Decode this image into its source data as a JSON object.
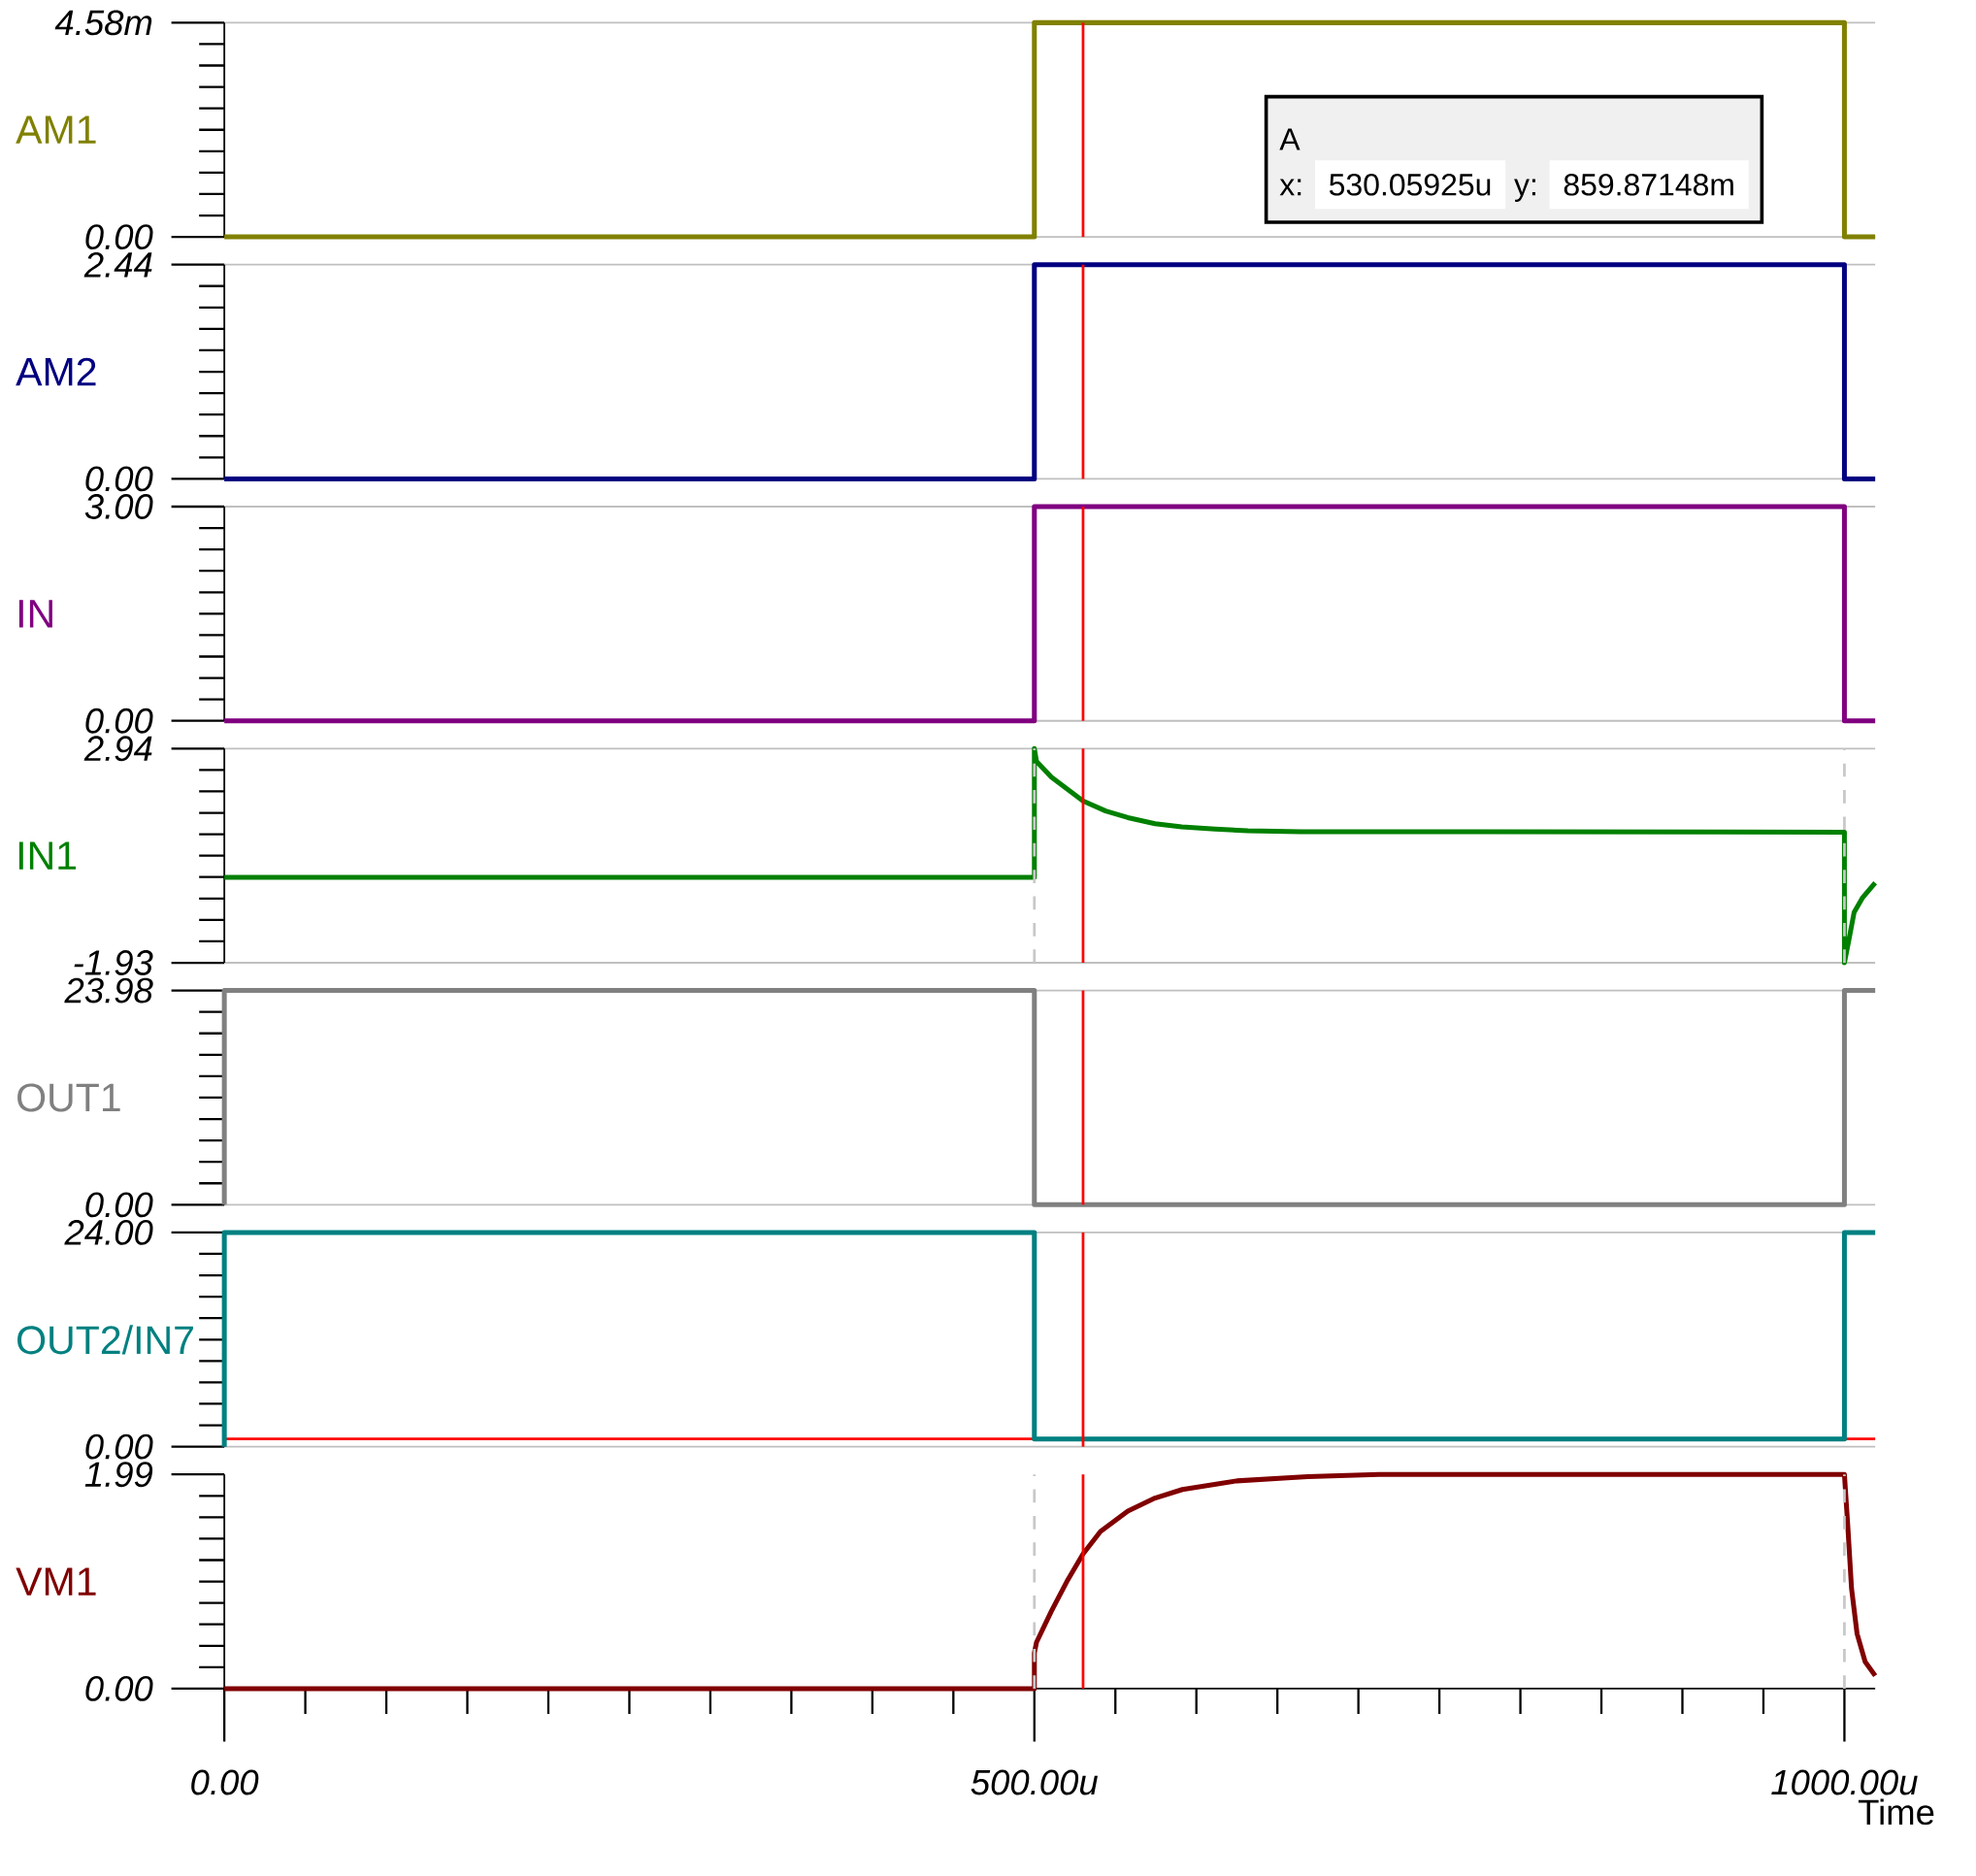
{
  "chart_data": [
    {
      "type": "line",
      "ylabel": "AM1",
      "xlim": [
        0,
        1019
      ],
      "ylim": [
        0,
        4.58
      ],
      "tick_labels": "y",
      "yticks": [
        {
          "value": 0,
          "label": "0.00"
        },
        {
          "value": 4.58,
          "label": "4.58m"
        }
      ],
      "series": [
        {
          "color": "#808000",
          "x": [
            0,
            500,
            500,
            1000,
            1000,
            1019
          ],
          "values": [
            0,
            0,
            4.58,
            4.58,
            0,
            0
          ]
        }
      ],
      "ref_lines": [
        {
          "axis": "x",
          "value": 530.05925,
          "color": "#ff0000"
        }
      ],
      "annotations": [
        "A",
        "x:",
        "530.05925u",
        "y:",
        "859.87148m"
      ]
    },
    {
      "type": "line",
      "ylabel": "AM2",
      "xlim": [
        0,
        1019
      ],
      "ylim": [
        0,
        2.44
      ],
      "tick_labels": "y",
      "yticks": [
        {
          "value": 0,
          "label": "0.00"
        },
        2.44
      ],
      "series": [
        {
          "color": "#000080",
          "x": [
            0,
            500,
            500,
            1000,
            1000,
            1019
          ],
          "values": [
            0,
            0,
            2.44,
            2.44,
            0,
            0
          ]
        }
      ],
      "ref_lines": [
        {
          "axis": "x",
          "value": 530.05925,
          "color": "#ff0000"
        }
      ]
    },
    {
      "type": "line",
      "ylabel": "IN",
      "xlim": [
        0,
        1019
      ],
      "ylim": [
        0,
        3
      ],
      "tick_labels": "y",
      "yticks": [
        {
          "value": 0,
          "label": "0.00"
        },
        {
          "value": 3,
          "label": "3.00"
        }
      ],
      "series": [
        {
          "color": "#800080",
          "x": [
            0,
            500,
            500,
            1000,
            1000,
            1019
          ],
          "values": [
            0,
            0,
            3,
            3,
            0,
            0
          ]
        }
      ],
      "ref_lines": [
        {
          "axis": "x",
          "value": 530.05925,
          "color": "#ff0000"
        }
      ]
    },
    {
      "type": "line",
      "ylabel": "IN1",
      "xlim": [
        0,
        1019
      ],
      "ylim": [
        -1.93,
        2.94
      ],
      "tick_labels": "y",
      "yticks": [
        -1.93,
        2.94
      ],
      "series": [
        {
          "color": "#008000",
          "x": [
            0,
            500,
            500,
            501.3,
            510.5,
            530,
            544,
            557.7,
            574.5,
            591,
            611.6,
            631.8,
            664.5,
            1000,
            1000,
            1002.7,
            1006,
            1011,
            1019
          ],
          "values": [
            0.01,
            0.01,
            2.94,
            2.65,
            2.29,
            1.75,
            1.52,
            1.37,
            1.23,
            1.16,
            1.11,
            1.07,
            1.05,
            1.04,
            -1.93,
            -1.42,
            -0.78,
            -0.46,
            -0.11
          ]
        }
      ],
      "ref_lines": [
        {
          "axis": "x",
          "value": 500,
          "color": "#c8c8c8",
          "line_style": "dashed"
        },
        {
          "axis": "x",
          "value": 1000,
          "color": "#c8c8c8",
          "line_style": "dashed"
        },
        {
          "axis": "x",
          "value": 530.05925,
          "color": "#ff0000"
        }
      ]
    },
    {
      "type": "line",
      "ylabel": "OUT1",
      "xlim": [
        0,
        1019
      ],
      "ylim": [
        0,
        23.98
      ],
      "tick_labels": "y",
      "yticks": [
        {
          "value": 0,
          "label": "0.00"
        },
        23.98
      ],
      "series": [
        {
          "color": "#808080",
          "x": [
            0,
            0,
            500,
            500,
            1000,
            1000,
            1019
          ],
          "values": [
            0,
            23.98,
            23.98,
            0,
            0,
            23.98,
            23.98
          ]
        }
      ],
      "ref_lines": [
        {
          "axis": "x",
          "value": 530.05925,
          "color": "#ff0000"
        }
      ]
    },
    {
      "type": "line",
      "ylabel": "OUT2/IN7",
      "xlim": [
        0,
        1019
      ],
      "ylim": [
        0,
        24
      ],
      "tick_labels": "y",
      "yticks": [
        {
          "value": 0,
          "label": "0.00"
        },
        {
          "value": 24,
          "label": "24.00"
        }
      ],
      "series": [
        {
          "color": "#008080",
          "x": [
            0,
            0,
            500,
            500,
            1000,
            1000,
            1019
          ],
          "values": [
            0,
            24,
            24,
            0.86,
            0.86,
            24,
            24
          ]
        }
      ],
      "ref_lines": [
        {
          "axis": "y",
          "value": 0.85987148,
          "color": "#ff0000"
        },
        {
          "axis": "x",
          "value": 530.05925,
          "color": "#ff0000"
        }
      ]
    },
    {
      "type": "line",
      "ylabel": "VM1",
      "xlabel": "Time",
      "xlim": [
        0,
        1019
      ],
      "ylim": [
        0,
        1.99
      ],
      "xticks": [
        {
          "value": 0,
          "label": "0.00"
        },
        {
          "value": 500,
          "label": "500.00u"
        },
        {
          "value": 1000,
          "label": "1000.00u"
        }
      ],
      "yticks": [
        {
          "value": 0,
          "label": "0.00"
        },
        1.99
      ],
      "series": [
        {
          "color": "#800000",
          "x": [
            0,
            500,
            500,
            501.3,
            510.5,
            520.6,
            530,
            540.8,
            557.7,
            574.5,
            591.4,
            625,
            668.9,
            712.7,
            1000,
            1002,
            1004.4,
            1007.8,
            1012.8,
            1019
          ],
          "values": [
            0,
            0,
            0.33,
            0.43,
            0.72,
            1.01,
            1.25,
            1.46,
            1.65,
            1.77,
            1.85,
            1.93,
            1.97,
            1.99,
            1.99,
            1.53,
            0.93,
            0.51,
            0.25,
            0.12
          ]
        }
      ],
      "ref_lines": [
        {
          "axis": "x",
          "value": 500,
          "color": "#c8c8c8",
          "line_style": "dashed"
        },
        {
          "axis": "x",
          "value": 1000,
          "color": "#c8c8c8",
          "line_style": "dashed"
        },
        {
          "axis": "x",
          "value": 530.05925,
          "color": "#ff0000"
        }
      ]
    }
  ]
}
